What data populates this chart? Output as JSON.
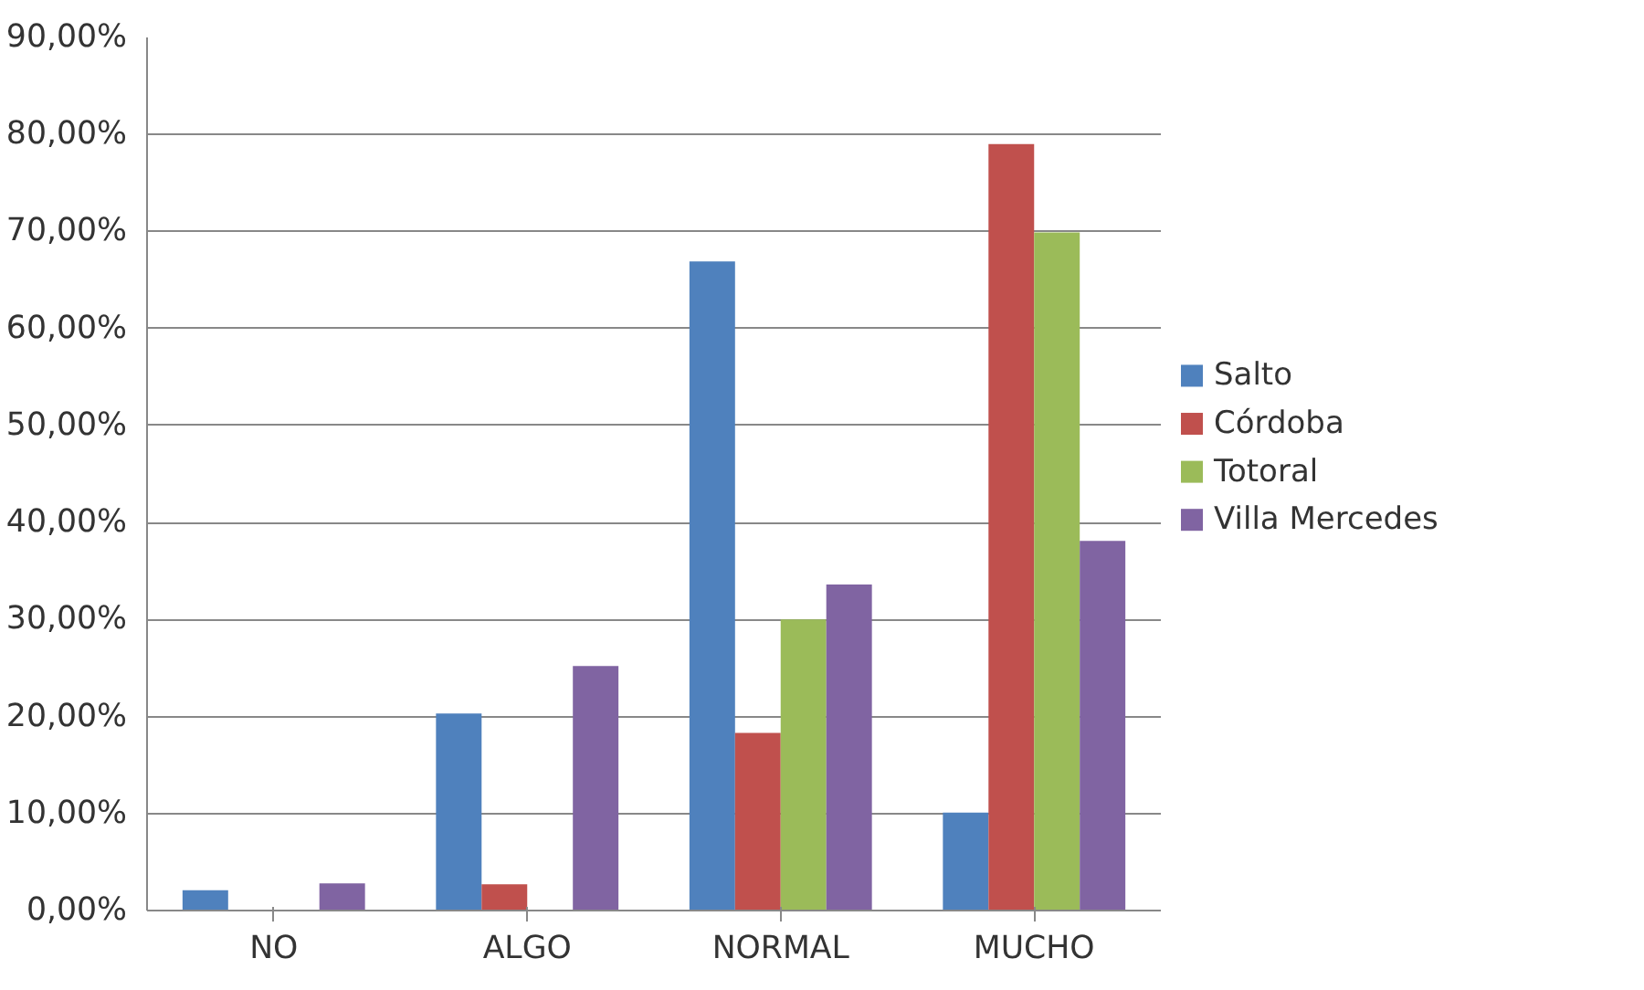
{
  "chart_data": {
    "type": "bar",
    "categories": [
      "NO",
      "ALGO",
      "NORMAL",
      "MUCHO"
    ],
    "series": [
      {
        "name": "Salto",
        "color": "#4f81bd",
        "values": [
          2.1,
          20.3,
          66.9,
          10.1
        ]
      },
      {
        "name": "Córdoba",
        "color": "#c0504d",
        "values": [
          0,
          2.7,
          18.3,
          79.0
        ]
      },
      {
        "name": "Totoral",
        "color": "#9bbb59",
        "values": [
          0,
          0,
          30.0,
          69.9
        ]
      },
      {
        "name": "Villa Mercedes",
        "color": "#8064a2",
        "values": [
          2.8,
          25.2,
          33.6,
          38.1
        ]
      }
    ],
    "ylim": [
      0,
      90
    ],
    "yticks": [
      {
        "value": 0,
        "label": "0,00%"
      },
      {
        "value": 10,
        "label": "10,00%"
      },
      {
        "value": 20,
        "label": "20,00%"
      },
      {
        "value": 30,
        "label": "30,00%"
      },
      {
        "value": 40,
        "label": "40,00%"
      },
      {
        "value": 50,
        "label": "50,00%"
      },
      {
        "value": 60,
        "label": "60,00%"
      },
      {
        "value": 70,
        "label": "70,00%"
      },
      {
        "value": 80,
        "label": "80,00%"
      },
      {
        "value": 90,
        "label": "90,00%"
      }
    ],
    "grid": "y",
    "legend": "right"
  }
}
